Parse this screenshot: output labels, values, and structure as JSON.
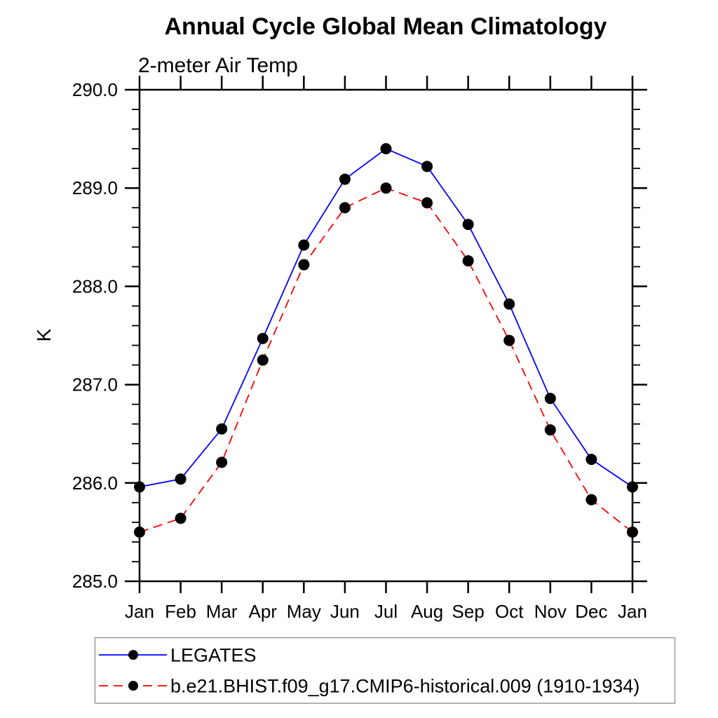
{
  "title": "Annual Cycle Global Mean Climatology",
  "subtitle": "2-meter Air Temp",
  "chart_data": {
    "type": "line",
    "title": "Annual Cycle Global Mean Climatology",
    "subtitle": "2-meter Air Temp",
    "ylabel": "K",
    "ylim": [
      285.0,
      290.0
    ],
    "ytick_major_interval": 1.0,
    "ytick_minor_interval": 0.2,
    "ytick_labels": [
      "285.0",
      "286.0",
      "287.0",
      "288.0",
      "289.0",
      "290.0"
    ],
    "categories": [
      "Jan",
      "Feb",
      "Mar",
      "Apr",
      "May",
      "Jun",
      "Jul",
      "Aug",
      "Sep",
      "Oct",
      "Nov",
      "Dec",
      "Jan"
    ],
    "grid": false,
    "legend_position": "bottom-left-box",
    "marker": {
      "shape": "filled-circle",
      "color": "#000000"
    },
    "series": [
      {
        "name": "LEGATES",
        "color": "#0000ff",
        "line_style": "solid",
        "values": [
          285.96,
          286.04,
          286.55,
          287.47,
          288.42,
          289.09,
          289.4,
          289.22,
          288.63,
          287.82,
          286.86,
          286.24,
          285.96
        ]
      },
      {
        "name": "b.e21.BHIST.f09_g17.CMIP6-historical.009 (1910-1934)",
        "color": "#ff0000",
        "line_style": "dashed",
        "values": [
          285.5,
          285.64,
          286.21,
          287.25,
          288.22,
          288.8,
          289.0,
          288.85,
          288.26,
          287.45,
          286.54,
          285.83,
          285.5
        ]
      }
    ]
  },
  "colors": {
    "axis": "#000000",
    "text": "#000000",
    "legend_border": "#999999",
    "background": "#ffffff"
  }
}
